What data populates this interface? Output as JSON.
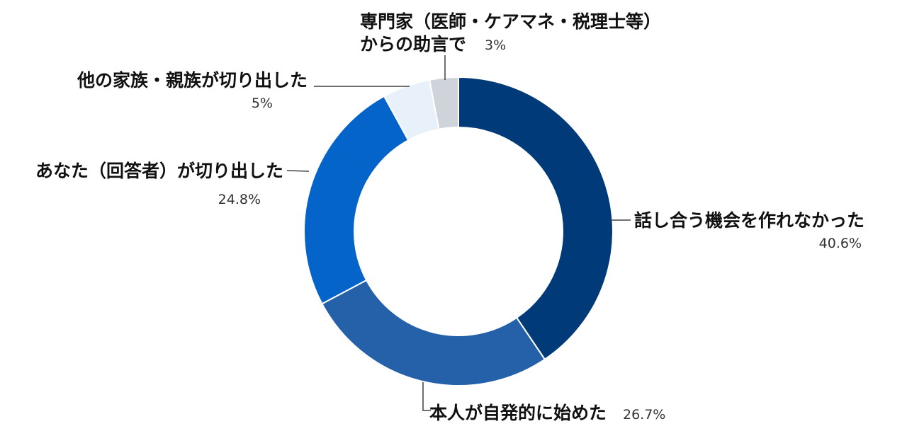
{
  "chart_data": {
    "type": "pie",
    "variant": "donut",
    "start": "12 o'clock, clockwise",
    "slices": [
      {
        "label": "話し合う機会を作れなかった",
        "value": 40.6,
        "value_label": "40.6%",
        "color": "#003a78"
      },
      {
        "label": "本人が自発的に始めた",
        "value": 26.7,
        "value_label": "26.7%",
        "color": "#2461a8"
      },
      {
        "label": "あなた（回答者）が切り出した",
        "value": 24.8,
        "value_label": "24.8%",
        "color": "#0564c9"
      },
      {
        "label": "他の家族・親族が切り出した",
        "value": 5,
        "value_label": "5%",
        "color": "#e8f0fa"
      },
      {
        "label": "専門家（医師・ケアマネ・税理士等）からの助言で",
        "label_lines": [
          "専門家（医師・ケアマネ・税理士等）",
          "からの助言で"
        ],
        "value": 3,
        "value_label": "3%",
        "color": "#cfd3da"
      }
    ]
  }
}
